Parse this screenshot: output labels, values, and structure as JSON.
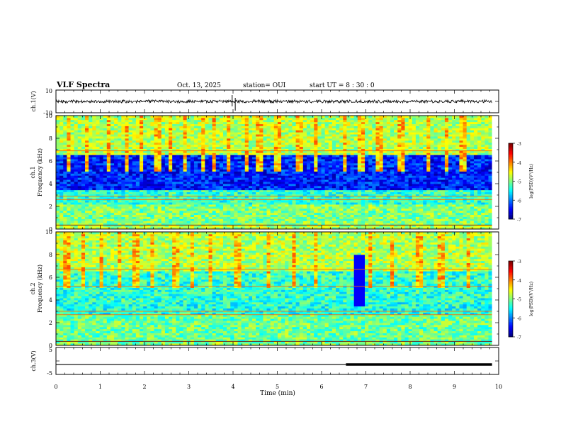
{
  "header": {
    "title": "VLF Spectra",
    "date": "Oct. 13, 2025",
    "station": "station= OUI",
    "start": "start UT =  8 : 30 : 0"
  },
  "chart_data": [
    {
      "type": "line",
      "ylabel": "ch.1(V)",
      "ylim": [
        -10,
        10
      ],
      "y_ticks": [
        "10",
        "-10"
      ],
      "baseline": 0,
      "description_values": {
        "noise_amplitude_approx": 1.2,
        "spike_times_min": [
          3.98,
          4.05
        ]
      }
    },
    {
      "type": "heatmap",
      "ylabel_channel": "ch.1",
      "ylabel": "Frequency (kHz)",
      "ylim": [
        0,
        10
      ],
      "y_ticks": [
        "0",
        "2",
        "4",
        "6",
        "8",
        "10"
      ],
      "xlim": [
        0,
        9.85
      ],
      "rows": [
        {
          "f0": 0,
          "f1": 0.3,
          "level": 0.55
        },
        {
          "f0": 0.3,
          "f1": 0.45,
          "level": 0.9
        },
        {
          "f0": 0.45,
          "f1": 2.2,
          "level": 0.5
        },
        {
          "f0": 2.2,
          "f1": 3.4,
          "level": 0.42
        },
        {
          "f0": 3.4,
          "f1": 6.6,
          "level": 0.15
        },
        {
          "f0": 6.6,
          "f1": 10,
          "level": 0.55
        }
      ],
      "lines_khz": [
        0.35,
        2.6,
        2.9,
        6.9
      ],
      "colorbar": {
        "label": "log(PSD)(V²/Hz)",
        "ticks": [
          "-3",
          "-4",
          "-5",
          "-6",
          "-7"
        ],
        "range": [
          -7,
          -3
        ]
      }
    },
    {
      "type": "heatmap",
      "ylabel_channel": "ch.2",
      "ylabel": "Frequency (kHz)",
      "ylim": [
        0,
        10
      ],
      "y_ticks": [
        "0",
        "2",
        "4",
        "6",
        "8",
        "10"
      ],
      "xlim": [
        0,
        9.85
      ],
      "rows": [
        {
          "f0": 0,
          "f1": 0.3,
          "level": 0.5
        },
        {
          "f0": 0.3,
          "f1": 0.45,
          "level": 0.9
        },
        {
          "f0": 0.45,
          "f1": 2.8,
          "level": 0.48
        },
        {
          "f0": 2.8,
          "f1": 3.8,
          "level": 0.4
        },
        {
          "f0": 3.8,
          "f1": 6.5,
          "level": 0.42
        },
        {
          "f0": 6.5,
          "f1": 10,
          "level": 0.55
        }
      ],
      "lines_khz": [
        0.35,
        2.7,
        3.0,
        5.2,
        6.7
      ],
      "colorbar": {
        "label": "log(PSD)(V²/Hz)",
        "ticks": [
          "-3",
          "-4",
          "-5",
          "-6",
          "-7"
        ],
        "range": [
          -7,
          -3
        ]
      }
    },
    {
      "type": "line",
      "ylabel": "ch.3(V)",
      "ylim": [
        -5,
        5
      ],
      "y_ticks": [
        "5",
        "0",
        "-5"
      ],
      "segments": [
        {
          "t0": 0,
          "t1": 6.55,
          "value": -1.3
        },
        {
          "t0": 6.55,
          "t1": 9.85,
          "value": -1.3,
          "thick": true
        }
      ]
    }
  ],
  "xaxis": {
    "label": "Time (min)",
    "ticks": [
      "0",
      "1",
      "2",
      "3",
      "4",
      "5",
      "6",
      "7",
      "8",
      "9",
      "10"
    ],
    "xlim": [
      0,
      10
    ]
  }
}
